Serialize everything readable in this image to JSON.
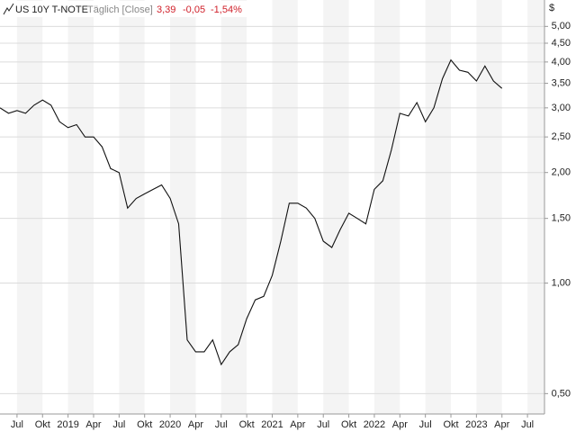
{
  "chart_data": {
    "type": "line",
    "header": {
      "mode": "Täglich [Close]",
      "last": "3,39",
      "change": "-0,05",
      "change_pct": "-1,54%"
    },
    "currency": "$",
    "x": [
      "2018-05",
      "2018-06",
      "2018-07",
      "2018-08",
      "2018-09",
      "2018-10",
      "2018-11",
      "2018-12",
      "2019-01",
      "2019-02",
      "2019-03",
      "2019-04",
      "2019-05",
      "2019-06",
      "2019-07",
      "2019-08",
      "2019-09",
      "2019-10",
      "2019-11",
      "2019-12",
      "2020-01",
      "2020-02",
      "2020-03",
      "2020-04",
      "2020-05",
      "2020-06",
      "2020-07",
      "2020-08",
      "2020-09",
      "2020-10",
      "2020-11",
      "2020-12",
      "2021-01",
      "2021-02",
      "2021-03",
      "2021-04",
      "2021-05",
      "2021-06",
      "2021-07",
      "2021-08",
      "2021-09",
      "2021-10",
      "2021-11",
      "2021-12",
      "2022-01",
      "2022-02",
      "2022-03",
      "2022-04",
      "2022-05",
      "2022-06",
      "2022-07",
      "2022-08",
      "2022-09",
      "2022-10",
      "2022-11",
      "2022-12",
      "2023-01",
      "2023-02",
      "2023-03",
      "2023-04"
    ],
    "series": [
      {
        "name": "US 10Y T-NOTE",
        "color": "#111111",
        "values": [
          3.0,
          2.9,
          2.95,
          2.9,
          3.05,
          3.15,
          3.05,
          2.75,
          2.65,
          2.7,
          2.5,
          2.5,
          2.35,
          2.05,
          2.0,
          1.6,
          1.7,
          1.75,
          1.8,
          1.85,
          1.7,
          1.45,
          0.7,
          0.65,
          0.65,
          0.7,
          0.6,
          0.65,
          0.68,
          0.8,
          0.9,
          0.92,
          1.05,
          1.3,
          1.65,
          1.65,
          1.6,
          1.5,
          1.3,
          1.25,
          1.4,
          1.55,
          1.5,
          1.45,
          1.8,
          1.9,
          2.3,
          2.9,
          2.85,
          3.1,
          2.75,
          3.0,
          3.6,
          4.05,
          3.8,
          3.75,
          3.55,
          3.9,
          3.55,
          3.39
        ]
      }
    ],
    "log_scale": true,
    "ylim": [
      0.44,
      5.9
    ],
    "yticks": [
      {
        "value": 0.5,
        "label": "0,50"
      },
      {
        "value": 1,
        "label": "1,00"
      },
      {
        "value": 1.5,
        "label": "1,50"
      },
      {
        "value": 2,
        "label": "2,00"
      },
      {
        "value": 2.5,
        "label": "2,50"
      },
      {
        "value": 3,
        "label": "3,00"
      },
      {
        "value": 3.5,
        "label": "3,50"
      },
      {
        "value": 4,
        "label": "4,00"
      },
      {
        "value": 4.5,
        "label": "4,50"
      },
      {
        "value": 5,
        "label": "5,00"
      }
    ],
    "xlim": [
      "2018-05",
      "2023-09"
    ],
    "xticks": [
      {
        "value": "2018-07",
        "label": "Jul"
      },
      {
        "value": "2018-10",
        "label": "Okt"
      },
      {
        "value": "2019-01",
        "label": "2019"
      },
      {
        "value": "2019-04",
        "label": "Apr"
      },
      {
        "value": "2019-07",
        "label": "Jul"
      },
      {
        "value": "2019-10",
        "label": "Okt"
      },
      {
        "value": "2020-01",
        "label": "2020"
      },
      {
        "value": "2020-04",
        "label": "Apr"
      },
      {
        "value": "2020-07",
        "label": "Jul"
      },
      {
        "value": "2020-10",
        "label": "Okt"
      },
      {
        "value": "2021-01",
        "label": "2021"
      },
      {
        "value": "2021-04",
        "label": "Apr"
      },
      {
        "value": "2021-07",
        "label": "Jul"
      },
      {
        "value": "2021-10",
        "label": "Okt"
      },
      {
        "value": "2022-01",
        "label": "2022"
      },
      {
        "value": "2022-04",
        "label": "Apr"
      },
      {
        "value": "2022-07",
        "label": "Jul"
      },
      {
        "value": "2022-10",
        "label": "Okt"
      },
      {
        "value": "2023-01",
        "label": "2023"
      },
      {
        "value": "2023-04",
        "label": "Apr"
      },
      {
        "value": "2023-07",
        "label": "Jul"
      }
    ],
    "grid": true
  }
}
